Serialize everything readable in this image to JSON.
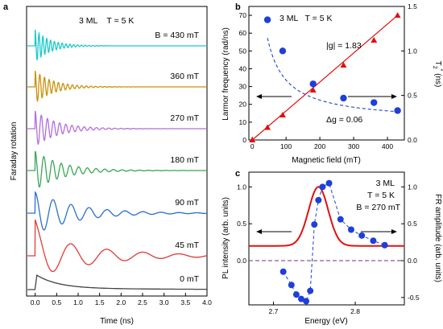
{
  "chart_data": [
    {
      "panel": "a",
      "type": "line",
      "annotation": "3 ML    T = 5 K",
      "xlabel": "Time (ns)",
      "ylabel": "Faraday rotation",
      "xlim": [
        -0.2,
        4.0
      ],
      "xticks": [
        "0.0",
        "0.5",
        "1.0",
        "1.5",
        "2.0",
        "2.5",
        "3.0",
        "3.5",
        "4.0"
      ],
      "series": [
        {
          "name": "B = 430 mT",
          "color": "#1fc9c9",
          "freq_rad_per_ns": 70,
          "decay_ns": 0.35,
          "amp": 1.0
        },
        {
          "name": "360 mT",
          "color": "#c8920a",
          "freq_rad_per_ns": 58,
          "decay_ns": 0.42,
          "amp": 1.0
        },
        {
          "name": "270 mT",
          "color": "#b36fdc",
          "freq_rad_per_ns": 44,
          "decay_ns": 0.52,
          "amp": 1.0
        },
        {
          "name": "180 mT",
          "color": "#3aa656",
          "freq_rad_per_ns": 31,
          "decay_ns": 0.62,
          "amp": 1.0
        },
        {
          "name": "90 mT",
          "color": "#2a6fcf",
          "freq_rad_per_ns": 15,
          "decay_ns": 0.95,
          "amp": 1.0
        },
        {
          "name": "45 mT",
          "color": "#e23a3a",
          "freq_rad_per_ns": 7.5,
          "decay_ns": 1.4,
          "amp": 1.0
        },
        {
          "name": "0 mT",
          "color": "#444444",
          "freq_rad_per_ns": 0,
          "decay_ns": 0.5,
          "amp": 1.0
        }
      ]
    },
    {
      "panel": "b",
      "type": "scatter",
      "annotation": "3 ML   T = 5 K",
      "xlabel": "Magnetic field (mT)",
      "ylabel": "Larmor frequency (rad/ns)",
      "ylabel_right": "T2* (ns)",
      "xlim": [
        -10,
        450
      ],
      "ylim": [
        0,
        75
      ],
      "ylim_right": [
        0,
        1.5
      ],
      "xticks": [
        0,
        100,
        200,
        300,
        400
      ],
      "yticks": [
        0,
        10,
        20,
        30,
        40,
        50,
        60,
        70
      ],
      "yticks_right": [
        0.0,
        0.5,
        1.0,
        1.5
      ],
      "larmor": {
        "x": [
          0,
          45,
          90,
          180,
          270,
          360,
          430
        ],
        "y": [
          0,
          7,
          14,
          28,
          42,
          56,
          70
        ],
        "color": "#e01010"
      },
      "t2": {
        "x": [
          45,
          90,
          180,
          270,
          360,
          430
        ],
        "y": [
          1.35,
          1.0,
          0.63,
          0.47,
          0.42,
          0.33
        ],
        "color": "#1e3fd8"
      },
      "g_text": "|g| = 1.83",
      "dg_text": "Δg = 0.06"
    },
    {
      "panel": "c",
      "type": "line",
      "annotation_lines": [
        "3 ML",
        "T = 5 K",
        "B = 270 mT"
      ],
      "xlabel": "Energy (eV)",
      "ylabel": "PL intensity (arb. units)",
      "ylabel_right": "FR amplitude (arb. units)",
      "xlim": [
        2.67,
        2.86
      ],
      "ylim": [
        -0.6,
        1.2
      ],
      "xticks": [
        2.7,
        2.8
      ],
      "yticks": [
        0.0,
        0.5,
        1.0
      ],
      "yticks_right": [
        -0.5,
        0.0,
        0.5,
        1.0
      ],
      "pl": {
        "center": 2.755,
        "width": 0.012,
        "baseline": 0.2,
        "color": "#e01010"
      },
      "fr": {
        "x": [
          2.712,
          2.722,
          2.728,
          2.734,
          2.74,
          2.745,
          2.75,
          2.755,
          2.76,
          2.768,
          2.782,
          2.795,
          2.808,
          2.822,
          2.836
        ],
        "y": [
          -0.15,
          -0.33,
          -0.46,
          -0.52,
          -0.55,
          -0.41,
          0.49,
          0.82,
          1.0,
          1.05,
          0.56,
          0.42,
          0.34,
          0.27,
          0.21
        ],
        "color": "#1e3fd8"
      }
    }
  ],
  "labels": {
    "a": "a",
    "b": "b",
    "c": "c",
    "a_annot": "3 ML    T = 5 K",
    "a_xlabel": "Time (ns)",
    "a_ylabel": "Faraday rotation",
    "b_annot": "3 ML   T = 5 K",
    "b_xlabel": "Magnetic field (mT)",
    "b_ylabel": "Larmor frequency (rad/ns)",
    "b_ylabel_right": "T",
    "b_ylabel_right_sub": "2",
    "b_ylabel_right_sup": "*",
    "b_ylabel_right_unit": " (ns)",
    "b_g": "|g| = 1.83",
    "b_dg": "Δg = 0.06",
    "c_annot1": "3 ML",
    "c_annot2": "T = 5 K",
    "c_annot3": "B = 270 mT",
    "c_xlabel": "Energy (eV)",
    "c_ylabel": "PL intensity (arb. units)",
    "c_ylabel_right": "FR amplitude (arb. units)"
  }
}
